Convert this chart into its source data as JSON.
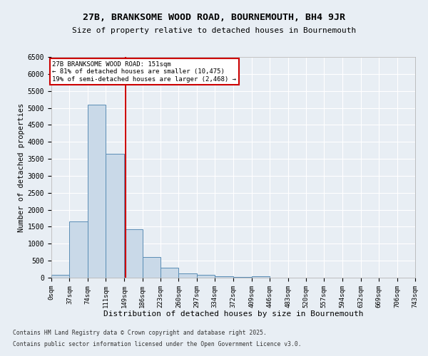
{
  "title": "27B, BRANKSOME WOOD ROAD, BOURNEMOUTH, BH4 9JR",
  "subtitle": "Size of property relative to detached houses in Bournemouth",
  "xlabel": "Distribution of detached houses by size in Bournemouth",
  "ylabel": "Number of detached properties",
  "footnote1": "Contains HM Land Registry data © Crown copyright and database right 2025.",
  "footnote2": "Contains public sector information licensed under the Open Government Licence v3.0.",
  "bin_edges": [
    0,
    37,
    74,
    111,
    149,
    186,
    223,
    260,
    297,
    334,
    372,
    409,
    446,
    483,
    520,
    557,
    594,
    632,
    669,
    706,
    743
  ],
  "bin_labels": [
    "0sqm",
    "37sqm",
    "74sqm",
    "111sqm",
    "149sqm",
    "186sqm",
    "223sqm",
    "260sqm",
    "297sqm",
    "334sqm",
    "372sqm",
    "409sqm",
    "446sqm",
    "483sqm",
    "520sqm",
    "557sqm",
    "594sqm",
    "632sqm",
    "669sqm",
    "706sqm",
    "743sqm"
  ],
  "bar_heights": [
    75,
    1650,
    5100,
    3650,
    1430,
    600,
    300,
    130,
    75,
    50,
    30,
    50,
    0,
    0,
    0,
    0,
    0,
    0,
    0,
    0
  ],
  "bar_color": "#c9d9e8",
  "bar_edge_color": "#5a8db5",
  "bg_color": "#e8eef4",
  "grid_color": "#ffffff",
  "vline_x": 151,
  "vline_color": "#cc0000",
  "annotation_text": "27B BRANKSOME WOOD ROAD: 151sqm\n← 81% of detached houses are smaller (10,475)\n19% of semi-detached houses are larger (2,468) →",
  "annotation_box_color": "#ffffff",
  "annotation_border_color": "#cc0000",
  "ylim": [
    0,
    6500
  ],
  "yticks": [
    0,
    500,
    1000,
    1500,
    2000,
    2500,
    3000,
    3500,
    4000,
    4500,
    5000,
    5500,
    6000,
    6500
  ]
}
